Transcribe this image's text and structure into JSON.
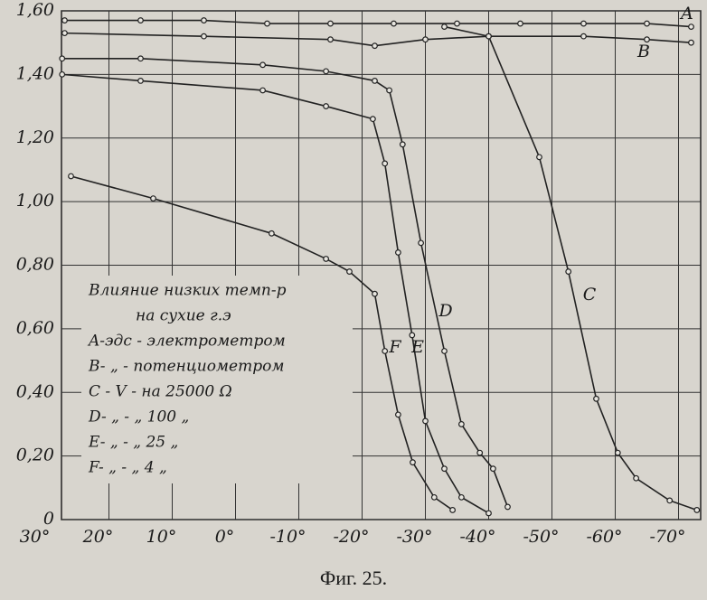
{
  "chart_data": {
    "type": "line",
    "caption": "Фиг. 25.",
    "annotation": [
      "Влияние низких темп-р",
      "на сухие г.э",
      "A-эдс - электрометром",
      "B- „ - потенциометром",
      "C - V - на 25000 Ω",
      "D- „ - „ 100 „",
      "E- „ - „ 25 „",
      "F- „ - „ 4 „"
    ],
    "xlim": [
      27.5,
      -73.5
    ],
    "ylim": [
      0,
      1.6
    ],
    "xticks": [
      {
        "value": 30,
        "label": "30°"
      },
      {
        "value": 20,
        "label": "20°"
      },
      {
        "value": 10,
        "label": "10°"
      },
      {
        "value": 0,
        "label": "0°"
      },
      {
        "value": -10,
        "label": "-10°"
      },
      {
        "value": -20,
        "label": "-20°"
      },
      {
        "value": -30,
        "label": "-30°"
      },
      {
        "value": -40,
        "label": "-40°"
      },
      {
        "value": -50,
        "label": "-50°"
      },
      {
        "value": -60,
        "label": "-60°"
      },
      {
        "value": -70,
        "label": "-70°"
      }
    ],
    "yticks": [
      0,
      {
        "value": 0.2,
        "label": "0,20"
      },
      {
        "value": 0.4,
        "label": "0,40"
      },
      {
        "value": 0.6,
        "label": "0,60"
      },
      {
        "value": 0.8,
        "label": "0,80"
      },
      {
        "value": 1.0,
        "label": "1,00"
      },
      {
        "value": 1.2,
        "label": "1,20"
      },
      {
        "value": 1.4,
        "label": "1,40"
      },
      {
        "value": 1.6,
        "label": "1,60"
      }
    ],
    "grid": true,
    "series": [
      {
        "name": "A",
        "color": "#222",
        "x": [
          27,
          15,
          5,
          -5,
          -15,
          -25,
          -35,
          -45,
          -55,
          -65,
          -72
        ],
        "values": [
          1.57,
          1.57,
          1.57,
          1.56,
          1.56,
          1.56,
          1.56,
          1.56,
          1.56,
          1.56,
          1.55
        ]
      },
      {
        "name": "B",
        "color": "#222",
        "x": [
          27,
          5,
          -15,
          -22,
          -30,
          -40,
          -55,
          -65,
          -72
        ],
        "values": [
          1.53,
          1.52,
          1.51,
          1.49,
          1.51,
          1.52,
          1.52,
          1.51,
          1.5
        ]
      },
      {
        "name": "C",
        "color": "#222",
        "x": [
          -33,
          -40,
          -48,
          -52.6,
          -57,
          -60.4,
          -63.3,
          -68.6,
          -72.9
        ],
        "values": [
          1.55,
          1.52,
          1.14,
          0.78,
          0.38,
          0.21,
          0.13,
          0.06,
          0.03
        ]
      },
      {
        "name": "D",
        "color": "#222",
        "x": [
          27.4,
          15,
          -4.3,
          -14.3,
          -22,
          -24.3,
          -26.4,
          -29.3,
          -33,
          -35.7,
          -38.6,
          -40.7,
          -43
        ],
        "values": [
          1.45,
          1.45,
          1.43,
          1.41,
          1.38,
          1.35,
          1.18,
          0.87,
          0.53,
          0.3,
          0.21,
          0.16,
          0.04
        ]
      },
      {
        "name": "E",
        "color": "#222",
        "x": [
          27.4,
          15,
          -4.3,
          -14.3,
          -21.7,
          -23.6,
          -25.7,
          -27.9,
          -30,
          -33,
          -35.7,
          -40
        ],
        "values": [
          1.4,
          1.38,
          1.35,
          1.3,
          1.26,
          1.12,
          0.84,
          0.58,
          0.31,
          0.16,
          0.07,
          0.02
        ]
      },
      {
        "name": "F",
        "color": "#222",
        "x": [
          26,
          13,
          -5.7,
          -14.3,
          -18,
          -22,
          -23.6,
          -25.7,
          -28,
          -31.4,
          -34.3
        ],
        "values": [
          1.08,
          1.01,
          0.9,
          0.82,
          0.78,
          0.71,
          0.53,
          0.33,
          0.18,
          0.07,
          0.03
        ]
      }
    ]
  }
}
